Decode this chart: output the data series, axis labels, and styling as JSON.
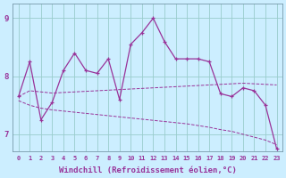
{
  "xlabel": "Windchill (Refroidissement éolien,°C)",
  "background_color": "#cceeff",
  "grid_color": "#99cccc",
  "line_color": "#993399",
  "hours": [
    0,
    1,
    2,
    3,
    4,
    5,
    6,
    7,
    8,
    9,
    10,
    11,
    12,
    13,
    14,
    15,
    16,
    17,
    18,
    19,
    20,
    21,
    22,
    23
  ],
  "main_line": [
    7.65,
    8.25,
    7.25,
    7.55,
    8.1,
    8.4,
    8.1,
    8.05,
    8.3,
    7.6,
    8.55,
    8.75,
    9.0,
    8.6,
    8.3,
    8.3,
    8.3,
    8.25,
    7.7,
    7.65,
    7.8,
    7.75,
    7.5,
    6.75
  ],
  "upper_line": [
    7.65,
    7.75,
    7.73,
    7.71,
    7.72,
    7.73,
    7.74,
    7.75,
    7.76,
    7.77,
    7.78,
    7.79,
    7.8,
    7.81,
    7.82,
    7.83,
    7.84,
    7.85,
    7.86,
    7.87,
    7.88,
    7.87,
    7.86,
    7.85
  ],
  "lower_line": [
    7.58,
    7.5,
    7.45,
    7.42,
    7.4,
    7.38,
    7.36,
    7.34,
    7.32,
    7.3,
    7.28,
    7.26,
    7.24,
    7.22,
    7.2,
    7.18,
    7.15,
    7.12,
    7.08,
    7.05,
    7.0,
    6.95,
    6.9,
    6.82
  ],
  "ylim": [
    6.7,
    9.25
  ],
  "yticks": [
    7,
    8,
    9
  ],
  "xtick_fontsize": 5.0,
  "ytick_fontsize": 6.5,
  "xlabel_fontsize": 6.5,
  "figsize": [
    3.2,
    2.0
  ],
  "dpi": 100
}
